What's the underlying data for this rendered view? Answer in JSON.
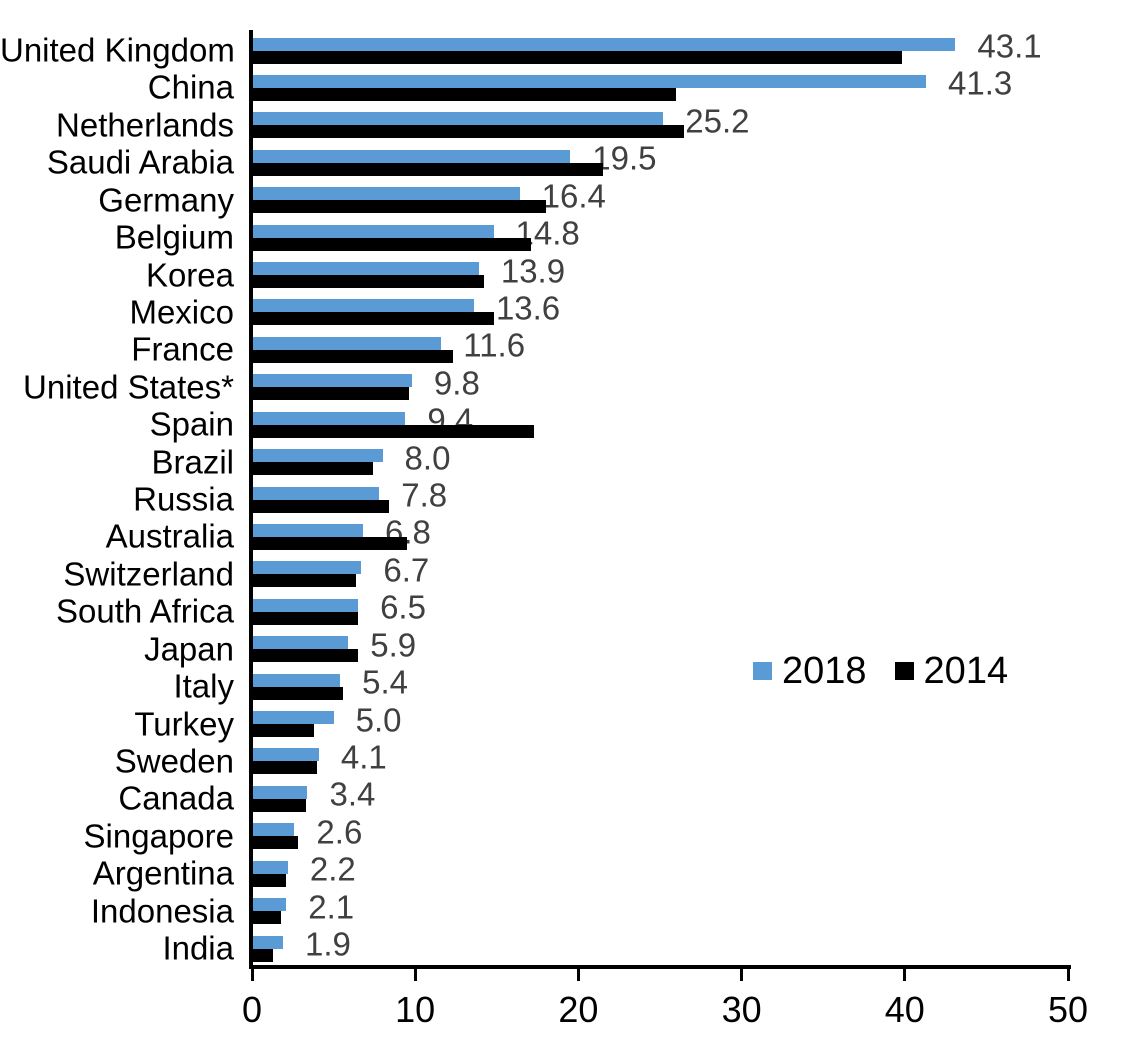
{
  "chart_data": {
    "type": "bar",
    "orientation": "horizontal",
    "title": "",
    "xlabel": "",
    "ylabel": "",
    "xlim": [
      0,
      50
    ],
    "x_ticks": [
      0,
      10,
      20,
      30,
      40,
      50
    ],
    "grid": false,
    "legend_position": "middle-right",
    "axis_color": "#000000",
    "value_label_color": "#404040",
    "categories": [
      "United Kingdom",
      "China",
      "Netherlands",
      "Saudi Arabia",
      "Germany",
      "Belgium",
      "Korea",
      "Mexico",
      "France",
      "United States*",
      "Spain",
      "Brazil",
      "Russia",
      "Australia",
      "Switzerland",
      "South Africa",
      "Japan",
      "Italy",
      "Turkey",
      "Sweden",
      "Canada",
      "Singapore",
      "Argentina",
      "Indonesia",
      "India"
    ],
    "series": [
      {
        "name": "2018",
        "color": "#5B9BD5",
        "values": [
          43.1,
          41.3,
          25.2,
          19.5,
          16.4,
          14.8,
          13.9,
          13.6,
          11.6,
          9.8,
          9.4,
          8.0,
          7.8,
          6.8,
          6.7,
          6.5,
          5.9,
          5.4,
          5.0,
          4.1,
          3.4,
          2.6,
          2.2,
          2.1,
          1.9
        ]
      },
      {
        "name": "2014",
        "color": "#000000",
        "values": [
          39.8,
          26.0,
          26.5,
          21.5,
          18.0,
          17.1,
          14.2,
          14.8,
          12.3,
          9.6,
          17.3,
          7.4,
          8.4,
          9.5,
          6.4,
          6.5,
          6.5,
          5.6,
          3.8,
          4.0,
          3.3,
          2.8,
          2.1,
          1.8,
          1.3
        ]
      }
    ],
    "value_labels_series": "2018",
    "value_labels": [
      "43.1",
      "41.3",
      "25.2",
      "19.5",
      "16.4",
      "14.8",
      "13.9",
      "13.6",
      "11.6",
      "9.8",
      "9.4",
      "8.0",
      "7.8",
      "6.8",
      "6.7",
      "6.5",
      "5.9",
      "5.4",
      "5.0",
      "4.1",
      "3.4",
      "2.6",
      "2.2",
      "2.1",
      "1.9"
    ]
  }
}
